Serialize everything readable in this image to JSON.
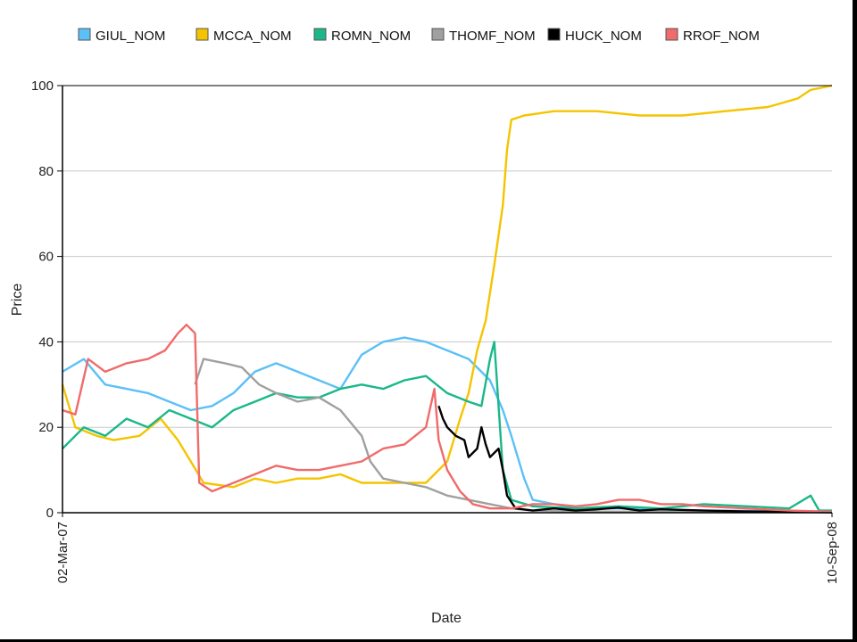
{
  "chart_data": {
    "type": "line",
    "xlabel": "Date",
    "ylabel": "Price",
    "x_tick_labels": [
      "02-Mar-07",
      "10-Sep-08"
    ],
    "y_ticks": [
      0,
      20,
      40,
      60,
      80,
      100
    ],
    "ylim": [
      0,
      100
    ],
    "grid": true,
    "legend_position": "top",
    "series": [
      {
        "name": "GIUL_NOM",
        "color": "#5bc0f8",
        "points": [
          [
            0,
            33
          ],
          [
            5,
            36
          ],
          [
            10,
            30
          ],
          [
            15,
            29
          ],
          [
            20,
            28
          ],
          [
            25,
            26
          ],
          [
            30,
            24
          ],
          [
            35,
            25
          ],
          [
            40,
            28
          ],
          [
            45,
            33
          ],
          [
            50,
            35
          ],
          [
            55,
            33
          ],
          [
            60,
            31
          ],
          [
            65,
            29
          ],
          [
            70,
            37
          ],
          [
            75,
            40
          ],
          [
            80,
            41
          ],
          [
            85,
            40
          ],
          [
            90,
            38
          ],
          [
            95,
            36
          ],
          [
            100,
            31
          ],
          [
            103,
            24
          ],
          [
            105,
            18
          ],
          [
            108,
            8
          ],
          [
            110,
            3
          ],
          [
            115,
            2
          ],
          [
            120,
            1
          ],
          [
            130,
            1
          ],
          [
            150,
            0.5
          ],
          [
            178,
            0.3
          ],
          [
            180,
            0
          ]
        ]
      },
      {
        "name": "MCCA_NOM",
        "color": "#f5c400",
        "points": [
          [
            0,
            30
          ],
          [
            3,
            20
          ],
          [
            8,
            18
          ],
          [
            12,
            17
          ],
          [
            18,
            18
          ],
          [
            23,
            22
          ],
          [
            27,
            17
          ],
          [
            30,
            12
          ],
          [
            33,
            7
          ],
          [
            40,
            6
          ],
          [
            45,
            8
          ],
          [
            50,
            7
          ],
          [
            55,
            8
          ],
          [
            60,
            8
          ],
          [
            65,
            9
          ],
          [
            70,
            7
          ],
          [
            75,
            7
          ],
          [
            80,
            7
          ],
          [
            85,
            7
          ],
          [
            90,
            12
          ],
          [
            93,
            22
          ],
          [
            95,
            28
          ],
          [
            97,
            38
          ],
          [
            99,
            45
          ],
          [
            101,
            58
          ],
          [
            103,
            72
          ],
          [
            104,
            85
          ],
          [
            105,
            92
          ],
          [
            108,
            93
          ],
          [
            115,
            94
          ],
          [
            125,
            94
          ],
          [
            135,
            93
          ],
          [
            145,
            93
          ],
          [
            155,
            94
          ],
          [
            165,
            95
          ],
          [
            172,
            97
          ],
          [
            175,
            99
          ],
          [
            180,
            100
          ]
        ]
      },
      {
        "name": "ROMN_NOM",
        "color": "#1ab889",
        "points": [
          [
            0,
            15
          ],
          [
            5,
            20
          ],
          [
            10,
            18
          ],
          [
            15,
            22
          ],
          [
            20,
            20
          ],
          [
            25,
            24
          ],
          [
            30,
            22
          ],
          [
            35,
            20
          ],
          [
            40,
            24
          ],
          [
            45,
            26
          ],
          [
            50,
            28
          ],
          [
            55,
            27
          ],
          [
            60,
            27
          ],
          [
            65,
            29
          ],
          [
            70,
            30
          ],
          [
            75,
            29
          ],
          [
            80,
            31
          ],
          [
            85,
            32
          ],
          [
            90,
            28
          ],
          [
            95,
            26
          ],
          [
            98,
            25
          ],
          [
            100,
            36
          ],
          [
            101,
            40
          ],
          [
            103,
            10
          ],
          [
            105,
            3
          ],
          [
            110,
            1.5
          ],
          [
            120,
            1
          ],
          [
            130,
            1.5
          ],
          [
            140,
            1
          ],
          [
            150,
            2
          ],
          [
            160,
            1.5
          ],
          [
            170,
            1
          ],
          [
            175,
            4
          ],
          [
            177,
            0.5
          ],
          [
            180,
            0.5
          ]
        ]
      },
      {
        "name": "THOMF_NOM",
        "color": "#a0a0a0",
        "points": [
          [
            31,
            30
          ],
          [
            33,
            36
          ],
          [
            38,
            35
          ],
          [
            42,
            34
          ],
          [
            46,
            30
          ],
          [
            50,
            28
          ],
          [
            55,
            26
          ],
          [
            60,
            27
          ],
          [
            65,
            24
          ],
          [
            70,
            18
          ],
          [
            72,
            12
          ],
          [
            75,
            8
          ],
          [
            80,
            7
          ],
          [
            85,
            6
          ],
          [
            90,
            4
          ],
          [
            95,
            3
          ],
          [
            100,
            2
          ],
          [
            105,
            1
          ],
          [
            110,
            0.5
          ],
          [
            120,
            0.3
          ],
          [
            140,
            0.2
          ],
          [
            180,
            0.1
          ]
        ]
      },
      {
        "name": "HUCK_NOM",
        "color": "#000000",
        "points": [
          [
            88,
            25
          ],
          [
            89,
            22
          ],
          [
            90,
            20
          ],
          [
            92,
            18
          ],
          [
            94,
            17
          ],
          [
            95,
            13
          ],
          [
            97,
            15
          ],
          [
            98,
            20
          ],
          [
            99,
            16
          ],
          [
            100,
            13
          ],
          [
            102,
            15
          ],
          [
            103,
            10
          ],
          [
            104,
            4
          ],
          [
            106,
            1
          ],
          [
            110,
            0.5
          ],
          [
            115,
            1
          ],
          [
            120,
            0.5
          ],
          [
            125,
            0.8
          ],
          [
            130,
            1.2
          ],
          [
            135,
            0.5
          ],
          [
            140,
            0.8
          ],
          [
            150,
            0.5
          ],
          [
            160,
            0.3
          ],
          [
            170,
            0.2
          ],
          [
            180,
            0.1
          ]
        ]
      },
      {
        "name": "RROF_NOM",
        "color": "#f06b6b",
        "points": [
          [
            0,
            24
          ],
          [
            3,
            23
          ],
          [
            6,
            36
          ],
          [
            10,
            33
          ],
          [
            15,
            35
          ],
          [
            20,
            36
          ],
          [
            24,
            38
          ],
          [
            27,
            42
          ],
          [
            29,
            44
          ],
          [
            31,
            42
          ],
          [
            32,
            7
          ],
          [
            35,
            5
          ],
          [
            40,
            7
          ],
          [
            45,
            9
          ],
          [
            50,
            11
          ],
          [
            55,
            10
          ],
          [
            60,
            10
          ],
          [
            65,
            11
          ],
          [
            70,
            12
          ],
          [
            75,
            15
          ],
          [
            80,
            16
          ],
          [
            85,
            20
          ],
          [
            87,
            29
          ],
          [
            88,
            17
          ],
          [
            90,
            10
          ],
          [
            93,
            5
          ],
          [
            96,
            2
          ],
          [
            100,
            1
          ],
          [
            105,
            1
          ],
          [
            110,
            2
          ],
          [
            115,
            2
          ],
          [
            120,
            1.5
          ],
          [
            125,
            2
          ],
          [
            130,
            3
          ],
          [
            135,
            3
          ],
          [
            140,
            2
          ],
          [
            145,
            2
          ],
          [
            150,
            1.5
          ],
          [
            160,
            1
          ],
          [
            170,
            0.5
          ],
          [
            180,
            0.2
          ]
        ]
      }
    ]
  }
}
